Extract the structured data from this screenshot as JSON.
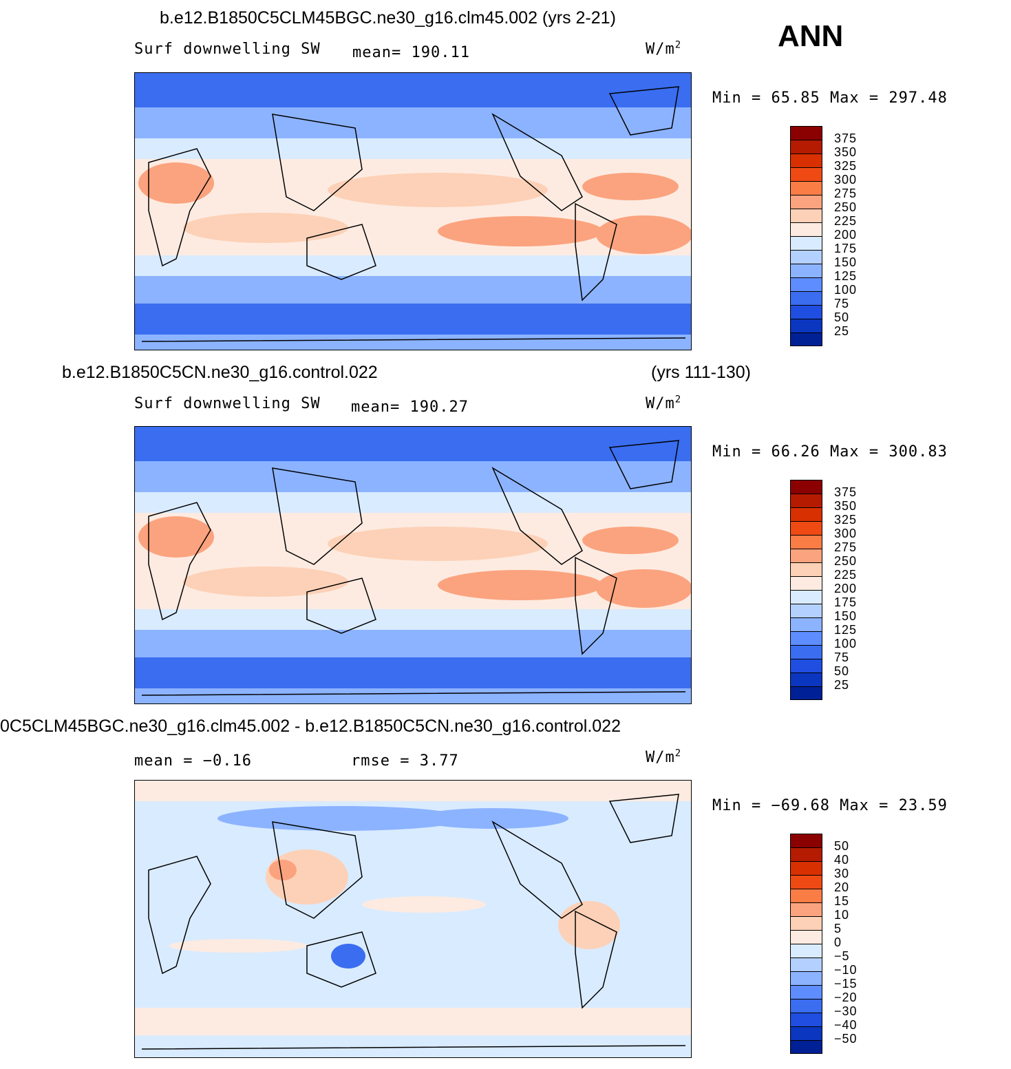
{
  "season": "ANN",
  "panels": [
    {
      "title_left": "b.e12.B1850C5CLM45BGC.ne30_g16.clm45.002 (yrs 2-21)",
      "title_right": "",
      "label_left": "Surf downwelling SW",
      "label_mid": "mean= 190.11",
      "label_mid2": "",
      "units": "W/m",
      "units_exp": "2",
      "minmax": "Min =  65.85 Max = 297.48",
      "levels": [
        "375",
        "350",
        "325",
        "300",
        "275",
        "250",
        "225",
        "200",
        "175",
        "150",
        "125",
        "100",
        "75",
        "50",
        "25"
      ],
      "colors": [
        "#8b0000",
        "#b51b00",
        "#d83000",
        "#f04a14",
        "#fb7d46",
        "#fba37e",
        "#fdd1b7",
        "#fdebe1",
        "#d9ebff",
        "#b4d0ff",
        "#8cb3ff",
        "#5e8dff",
        "#3a6df0",
        "#1f4ee0",
        "#0b36c0",
        "#002096"
      ]
    },
    {
      "title_left": "b.e12.B1850C5CN.ne30_g16.control.022",
      "title_right": "(yrs 111-130)",
      "label_left": "Surf downwelling SW",
      "label_mid": "mean= 190.27",
      "label_mid2": "",
      "units": "W/m",
      "units_exp": "2",
      "minmax": "Min =  66.26 Max = 300.83",
      "levels": [
        "375",
        "350",
        "325",
        "300",
        "275",
        "250",
        "225",
        "200",
        "175",
        "150",
        "125",
        "100",
        "75",
        "50",
        "25"
      ],
      "colors": [
        "#8b0000",
        "#b51b00",
        "#d83000",
        "#f04a14",
        "#fb7d46",
        "#fba37e",
        "#fdd1b7",
        "#fdebe1",
        "#d9ebff",
        "#b4d0ff",
        "#8cb3ff",
        "#5e8dff",
        "#3a6df0",
        "#1f4ee0",
        "#0b36c0",
        "#002096"
      ]
    },
    {
      "title_left": "0C5CLM45BGC.ne30_g16.clm45.002 - b.e12.B1850C5CN.ne30_g16.control.022",
      "title_right": "",
      "label_left": "mean =   −0.16",
      "label_mid": "rmse =    3.77",
      "label_mid2": "",
      "units": "W/m",
      "units_exp": "2",
      "minmax": "Min = −69.68 Max =  23.59",
      "levels": [
        "50",
        "40",
        "30",
        "20",
        "15",
        "10",
        "5",
        "0",
        "−5",
        "−10",
        "−15",
        "−20",
        "−30",
        "−40",
        "−50"
      ],
      "colors": [
        "#8b0000",
        "#b51b00",
        "#d83000",
        "#f04a14",
        "#fb7d46",
        "#fba37e",
        "#fdd1b7",
        "#fdebe1",
        "#d9ebff",
        "#b4d0ff",
        "#8cb3ff",
        "#5e8dff",
        "#3a6df0",
        "#1f4ee0",
        "#0b36c0",
        "#002096"
      ]
    }
  ]
}
